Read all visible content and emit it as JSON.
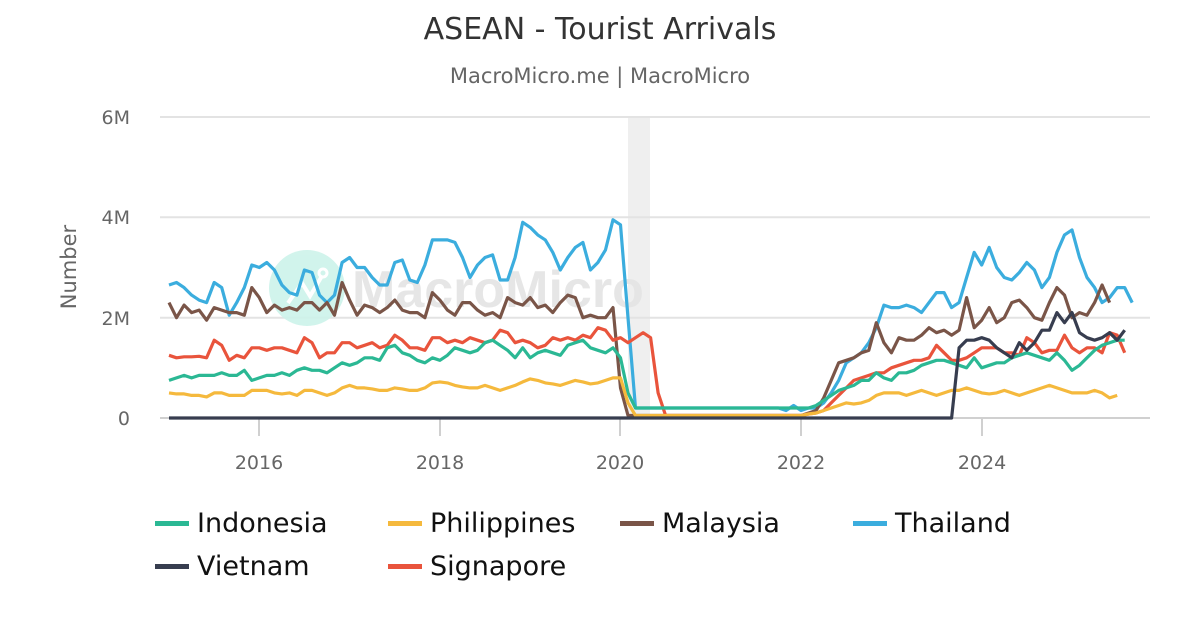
{
  "header": {
    "title": "ASEAN - Tourist Arrivals",
    "subtitle": "MacroMicro.me | MacroMicro"
  },
  "watermark": "MacroMicro",
  "axes": {
    "ylabel": "Number",
    "yticks": [
      "0",
      "2M",
      "4M",
      "6M"
    ],
    "xticks": [
      "2016",
      "2018",
      "2020",
      "2022",
      "2024"
    ]
  },
  "legend": [
    {
      "label": "Indonesia",
      "color": "#2bb894"
    },
    {
      "label": "Philippines",
      "color": "#f5b93d"
    },
    {
      "label": "Malaysia",
      "color": "#7a5548"
    },
    {
      "label": "Thailand",
      "color": "#3badde"
    },
    {
      "label": "Vietnam",
      "color": "#373d4f"
    },
    {
      "label": "Signapore",
      "color": "#e9543c"
    }
  ],
  "chart_data": {
    "type": "line",
    "title": "ASEAN - Tourist Arrivals",
    "subtitle": "MacroMicro.me | MacroMicro",
    "xlabel": "",
    "ylabel": "Number",
    "ylim": [
      0,
      6000000
    ],
    "xrange": [
      "2015-01",
      "2025-09"
    ],
    "grid": true,
    "legend_position": "bottom",
    "shaded_region": {
      "from": "2020-02",
      "to": "2020-04"
    },
    "frequency": "monthly",
    "x_start": "2015-01",
    "series": [
      {
        "name": "Thailand",
        "color": "#3badde",
        "values": [
          2.65,
          2.7,
          2.6,
          2.45,
          2.35,
          2.3,
          2.7,
          2.6,
          2.05,
          2.3,
          2.6,
          3.05,
          3.0,
          3.1,
          2.95,
          2.65,
          2.5,
          2.45,
          2.95,
          2.9,
          2.45,
          2.3,
          2.45,
          3.1,
          3.2,
          3.0,
          3.0,
          2.8,
          2.65,
          2.65,
          3.1,
          3.15,
          2.75,
          2.7,
          3.05,
          3.55,
          3.55,
          3.55,
          3.5,
          3.2,
          2.8,
          3.05,
          3.2,
          3.25,
          2.75,
          2.75,
          3.2,
          3.9,
          3.8,
          3.65,
          3.55,
          3.3,
          2.95,
          3.2,
          3.4,
          3.5,
          2.95,
          3.1,
          3.35,
          3.95,
          3.85,
          2.0,
          0.2,
          0.2,
          0.2,
          0.2,
          0.2,
          0.2,
          0.2,
          0.2,
          0.2,
          0.2,
          0.2,
          0.2,
          0.2,
          0.2,
          0.2,
          0.2,
          0.2,
          0.2,
          0.2,
          0.2,
          0.15,
          0.25,
          0.15,
          0.2,
          0.2,
          0.3,
          0.5,
          0.75,
          1.1,
          1.2,
          1.3,
          1.5,
          1.8,
          2.25,
          2.2,
          2.2,
          2.25,
          2.2,
          2.1,
          2.3,
          2.5,
          2.5,
          2.2,
          2.3,
          2.8,
          3.3,
          3.05,
          3.4,
          3.0,
          2.8,
          2.75,
          2.9,
          3.1,
          2.95,
          2.6,
          2.8,
          3.3,
          3.65,
          3.75,
          3.2,
          2.8,
          2.6,
          2.3,
          2.4,
          2.6,
          2.6,
          2.3
        ]
      },
      {
        "name": "Malaysia",
        "color": "#7a5548",
        "values": [
          2.3,
          2.0,
          2.25,
          2.1,
          2.15,
          1.95,
          2.2,
          2.15,
          2.1,
          2.1,
          2.05,
          2.6,
          2.4,
          2.1,
          2.25,
          2.15,
          2.2,
          2.15,
          2.3,
          2.3,
          2.15,
          2.3,
          2.05,
          2.7,
          2.35,
          2.05,
          2.25,
          2.2,
          2.1,
          2.2,
          2.35,
          2.15,
          2.1,
          2.1,
          2.0,
          2.5,
          2.35,
          2.15,
          2.05,
          2.3,
          2.3,
          2.15,
          2.05,
          2.1,
          2.0,
          2.4,
          2.3,
          2.25,
          2.4,
          2.2,
          2.25,
          2.1,
          2.3,
          2.45,
          2.4,
          2.0,
          2.05,
          2.0,
          2.0,
          2.2,
          0.6,
          0.05,
          0.05,
          0.05,
          0.05,
          0.05,
          0.05,
          0.05,
          0.05,
          0.05,
          0.05,
          0.05,
          0.05,
          0.05,
          0.05,
          0.05,
          0.05,
          0.05,
          0.05,
          0.05,
          0.05,
          0.05,
          0.05,
          0.05,
          0.05,
          0.1,
          0.15,
          0.4,
          0.75,
          1.1,
          1.15,
          1.2,
          1.3,
          1.35,
          1.9,
          1.5,
          1.3,
          1.6,
          1.55,
          1.55,
          1.65,
          1.8,
          1.7,
          1.75,
          1.65,
          1.75,
          2.4,
          1.8,
          1.95,
          2.2,
          1.9,
          2.0,
          2.3,
          2.35,
          2.2,
          2.0,
          1.95,
          2.3,
          2.6,
          2.45,
          2.0,
          2.1,
          2.05,
          2.3,
          2.65,
          2.3
        ]
      },
      {
        "name": "Signapore",
        "color": "#e9543c",
        "values": [
          1.25,
          1.2,
          1.22,
          1.22,
          1.23,
          1.2,
          1.55,
          1.45,
          1.15,
          1.25,
          1.2,
          1.4,
          1.4,
          1.35,
          1.4,
          1.4,
          1.35,
          1.3,
          1.6,
          1.5,
          1.2,
          1.3,
          1.3,
          1.5,
          1.5,
          1.4,
          1.45,
          1.5,
          1.4,
          1.45,
          1.65,
          1.55,
          1.4,
          1.4,
          1.35,
          1.6,
          1.6,
          1.5,
          1.55,
          1.5,
          1.6,
          1.55,
          1.5,
          1.55,
          1.75,
          1.7,
          1.5,
          1.55,
          1.5,
          1.4,
          1.45,
          1.6,
          1.55,
          1.6,
          1.55,
          1.65,
          1.6,
          1.8,
          1.75,
          1.55,
          1.6,
          1.5,
          1.6,
          1.7,
          1.6,
          0.5,
          0.05,
          0.05,
          0.05,
          0.05,
          0.05,
          0.05,
          0.05,
          0.05,
          0.05,
          0.05,
          0.05,
          0.05,
          0.05,
          0.05,
          0.05,
          0.05,
          0.05,
          0.05,
          0.05,
          0.08,
          0.1,
          0.15,
          0.3,
          0.45,
          0.6,
          0.75,
          0.8,
          0.85,
          0.9,
          0.9,
          1.0,
          1.05,
          1.1,
          1.15,
          1.15,
          1.2,
          1.45,
          1.3,
          1.15,
          1.15,
          1.2,
          1.3,
          1.4,
          1.4,
          1.4,
          1.3,
          1.3,
          1.25,
          1.6,
          1.5,
          1.3,
          1.35,
          1.35,
          1.65,
          1.4,
          1.3,
          1.4,
          1.4,
          1.3,
          1.7,
          1.65,
          1.3
        ]
      },
      {
        "name": "Indonesia",
        "color": "#2bb894",
        "values": [
          0.75,
          0.8,
          0.85,
          0.8,
          0.85,
          0.85,
          0.85,
          0.9,
          0.85,
          0.85,
          0.95,
          0.75,
          0.8,
          0.85,
          0.85,
          0.9,
          0.85,
          0.95,
          1.0,
          0.95,
          0.95,
          0.9,
          1.0,
          1.1,
          1.05,
          1.1,
          1.2,
          1.2,
          1.15,
          1.4,
          1.45,
          1.3,
          1.25,
          1.15,
          1.1,
          1.2,
          1.15,
          1.25,
          1.4,
          1.35,
          1.3,
          1.35,
          1.5,
          1.55,
          1.45,
          1.35,
          1.2,
          1.4,
          1.2,
          1.3,
          1.35,
          1.3,
          1.25,
          1.45,
          1.5,
          1.55,
          1.4,
          1.35,
          1.3,
          1.4,
          1.2,
          0.5,
          0.2,
          0.2,
          0.2,
          0.2,
          0.2,
          0.2,
          0.2,
          0.2,
          0.2,
          0.2,
          0.2,
          0.2,
          0.2,
          0.2,
          0.2,
          0.2,
          0.2,
          0.2,
          0.2,
          0.2,
          0.2,
          0.2,
          0.2,
          0.2,
          0.25,
          0.35,
          0.45,
          0.55,
          0.6,
          0.65,
          0.75,
          0.75,
          0.9,
          0.8,
          0.75,
          0.9,
          0.9,
          0.95,
          1.05,
          1.1,
          1.15,
          1.15,
          1.1,
          1.05,
          1.0,
          1.2,
          1.0,
          1.05,
          1.1,
          1.1,
          1.2,
          1.25,
          1.3,
          1.25,
          1.2,
          1.15,
          1.3,
          1.15,
          0.95,
          1.05,
          1.2,
          1.35,
          1.45,
          1.5,
          1.55,
          1.55
        ]
      },
      {
        "name": "Philippines",
        "color": "#f5b93d",
        "values": [
          0.5,
          0.48,
          0.48,
          0.45,
          0.45,
          0.42,
          0.5,
          0.5,
          0.45,
          0.45,
          0.45,
          0.55,
          0.55,
          0.55,
          0.5,
          0.48,
          0.5,
          0.45,
          0.55,
          0.55,
          0.5,
          0.45,
          0.5,
          0.6,
          0.65,
          0.6,
          0.6,
          0.58,
          0.55,
          0.55,
          0.6,
          0.58,
          0.55,
          0.55,
          0.6,
          0.7,
          0.72,
          0.7,
          0.65,
          0.62,
          0.6,
          0.6,
          0.65,
          0.6,
          0.55,
          0.6,
          0.65,
          0.72,
          0.78,
          0.75,
          0.7,
          0.68,
          0.65,
          0.7,
          0.75,
          0.72,
          0.68,
          0.7,
          0.75,
          0.8,
          0.8,
          0.3,
          0.05,
          0.05,
          0.05,
          0.05,
          0.05,
          0.05,
          0.05,
          0.05,
          0.05,
          0.05,
          0.05,
          0.05,
          0.05,
          0.05,
          0.05,
          0.05,
          0.05,
          0.05,
          0.05,
          0.05,
          0.05,
          0.05,
          0.05,
          0.08,
          0.1,
          0.15,
          0.2,
          0.25,
          0.3,
          0.28,
          0.3,
          0.35,
          0.45,
          0.5,
          0.5,
          0.5,
          0.45,
          0.5,
          0.55,
          0.5,
          0.45,
          0.5,
          0.55,
          0.55,
          0.6,
          0.55,
          0.5,
          0.48,
          0.5,
          0.55,
          0.5,
          0.45,
          0.5,
          0.55,
          0.6,
          0.65,
          0.6,
          0.55,
          0.5,
          0.5,
          0.5,
          0.55,
          0.5,
          0.4,
          0.45
        ]
      },
      {
        "name": "Vietnam",
        "color": "#373d4f",
        "values": [
          0,
          0,
          0,
          0,
          0,
          0,
          0,
          0,
          0,
          0,
          0,
          0,
          0,
          0,
          0,
          0,
          0,
          0,
          0,
          0,
          0,
          0,
          0,
          0,
          0,
          0,
          0,
          0,
          0,
          0,
          0,
          0,
          0,
          0,
          0,
          0,
          0,
          0,
          0,
          0,
          0,
          0,
          0,
          0,
          0,
          0,
          0,
          0,
          0,
          0,
          0,
          0,
          0,
          0,
          0,
          0,
          0,
          0,
          0,
          0,
          0,
          0,
          0,
          0,
          0,
          0,
          0,
          0,
          0,
          0,
          0,
          0,
          0,
          0,
          0,
          0,
          0,
          0,
          0,
          0,
          0,
          0,
          0,
          0,
          0,
          0,
          0,
          0,
          0,
          0,
          0,
          0,
          0,
          0,
          0,
          0,
          0,
          0,
          0,
          0,
          0,
          0,
          0,
          0,
          0,
          1.4,
          1.55,
          1.55,
          1.6,
          1.55,
          1.4,
          1.3,
          1.2,
          1.5,
          1.35,
          1.5,
          1.75,
          1.75,
          2.1,
          1.9,
          2.1,
          1.7,
          1.6,
          1.55,
          1.6,
          1.7,
          1.55,
          1.75
        ]
      }
    ]
  }
}
